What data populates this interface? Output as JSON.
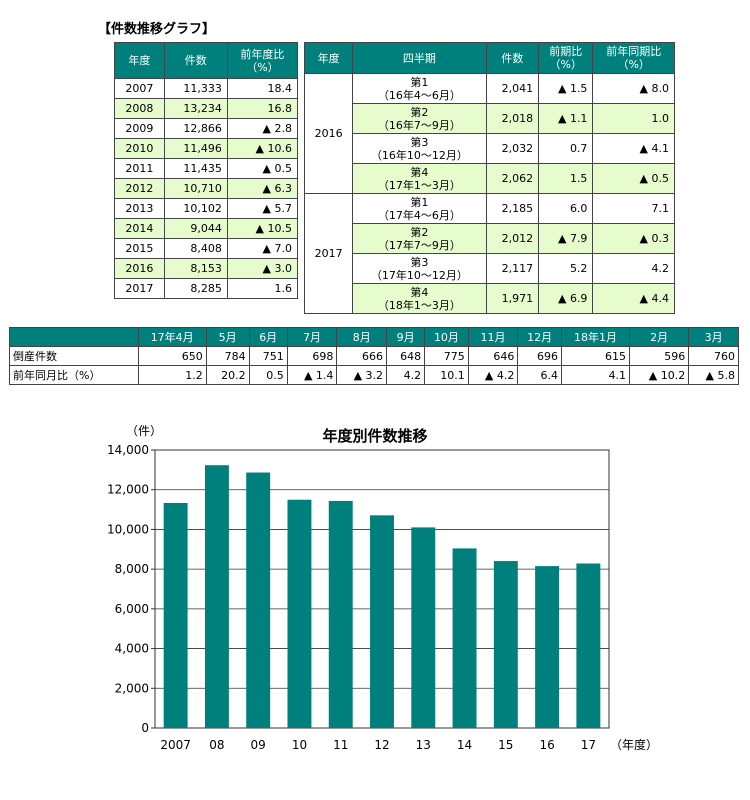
{
  "section_title": "【件数推移グラフ】",
  "table_annual": {
    "headers": [
      "年度",
      "件数",
      "前年度比\n（%）"
    ],
    "rows": [
      [
        "2007",
        "11,333",
        "18.4"
      ],
      [
        "2008",
        "13,234",
        "16.8"
      ],
      [
        "2009",
        "12,866",
        "▲ 2.8"
      ],
      [
        "2010",
        "11,496",
        "▲ 10.6"
      ],
      [
        "2011",
        "11,435",
        "▲ 0.5"
      ],
      [
        "2012",
        "10,710",
        "▲ 6.3"
      ],
      [
        "2013",
        "10,102",
        "▲ 5.7"
      ],
      [
        "2014",
        "9,044",
        "▲ 10.5"
      ],
      [
        "2015",
        "8,408",
        "▲ 7.0"
      ],
      [
        "2016",
        "8,153",
        "▲ 3.0"
      ],
      [
        "2017",
        "8,285",
        "1.6"
      ]
    ]
  },
  "table_quarter": {
    "headers": [
      "年度",
      "四半期",
      "件数",
      "前期比\n（%）",
      "前年同期比\n（%）"
    ],
    "groups": [
      {
        "year": "2016",
        "rows": [
          [
            "第1\n（16年4～6月）",
            "2,041",
            "▲ 1.5",
            "▲ 8.0"
          ],
          [
            "第2\n（16年7～9月）",
            "2,018",
            "▲ 1.1",
            "1.0"
          ],
          [
            "第3\n（16年10～12月）",
            "2,032",
            "0.7",
            "▲ 4.1"
          ],
          [
            "第4\n（17年1～3月）",
            "2,062",
            "1.5",
            "▲ 0.5"
          ]
        ]
      },
      {
        "year": "2017",
        "rows": [
          [
            "第1\n（17年4～6月）",
            "2,185",
            "6.0",
            "7.1"
          ],
          [
            "第2\n（17年7～9月）",
            "2,012",
            "▲ 7.9",
            "▲ 0.3"
          ],
          [
            "第3\n（17年10～12月）",
            "2,117",
            "5.2",
            "4.2"
          ],
          [
            "第4\n（18年1～3月）",
            "1,971",
            "▲ 6.9",
            "▲ 4.4"
          ]
        ]
      }
    ]
  },
  "table_monthly": {
    "months": [
      "17年4月",
      "5月",
      "6月",
      "7月",
      "8月",
      "9月",
      "10月",
      "11月",
      "12月",
      "18年1月",
      "2月",
      "3月"
    ],
    "rows": [
      {
        "label": "倒産件数",
        "values": [
          "650",
          "784",
          "751",
          "698",
          "666",
          "648",
          "775",
          "646",
          "696",
          "615",
          "596",
          "760"
        ]
      },
      {
        "label": "前年同月比（%）",
        "values": [
          "1.2",
          "20.2",
          "0.5",
          "▲ 1.4",
          "▲ 3.2",
          "4.2",
          "10.1",
          "▲ 4.2",
          "6.4",
          "4.1",
          "▲ 10.2",
          "▲ 5.8"
        ]
      }
    ]
  },
  "colors": {
    "header_bg": "#00807d",
    "highlight_bg": "#e6fccd",
    "bar": "#00807d"
  },
  "chart_data": {
    "type": "bar",
    "title": "年度別件数推移",
    "ylabel": "（件）",
    "xlabel": "（年度）",
    "categories": [
      "2007",
      "08",
      "09",
      "10",
      "11",
      "12",
      "13",
      "14",
      "15",
      "16",
      "17"
    ],
    "values": [
      11333,
      13234,
      12866,
      11496,
      11435,
      10710,
      10102,
      9044,
      8408,
      8153,
      8285
    ],
    "ylim": [
      0,
      14000
    ],
    "yticks": [
      0,
      2000,
      4000,
      6000,
      8000,
      10000,
      12000,
      14000
    ],
    "ytick_labels": [
      "0",
      "2,000",
      "4,000",
      "6,000",
      "8,000",
      "10,000",
      "12,000",
      "14,000"
    ],
    "grid": true,
    "legend": "none"
  }
}
